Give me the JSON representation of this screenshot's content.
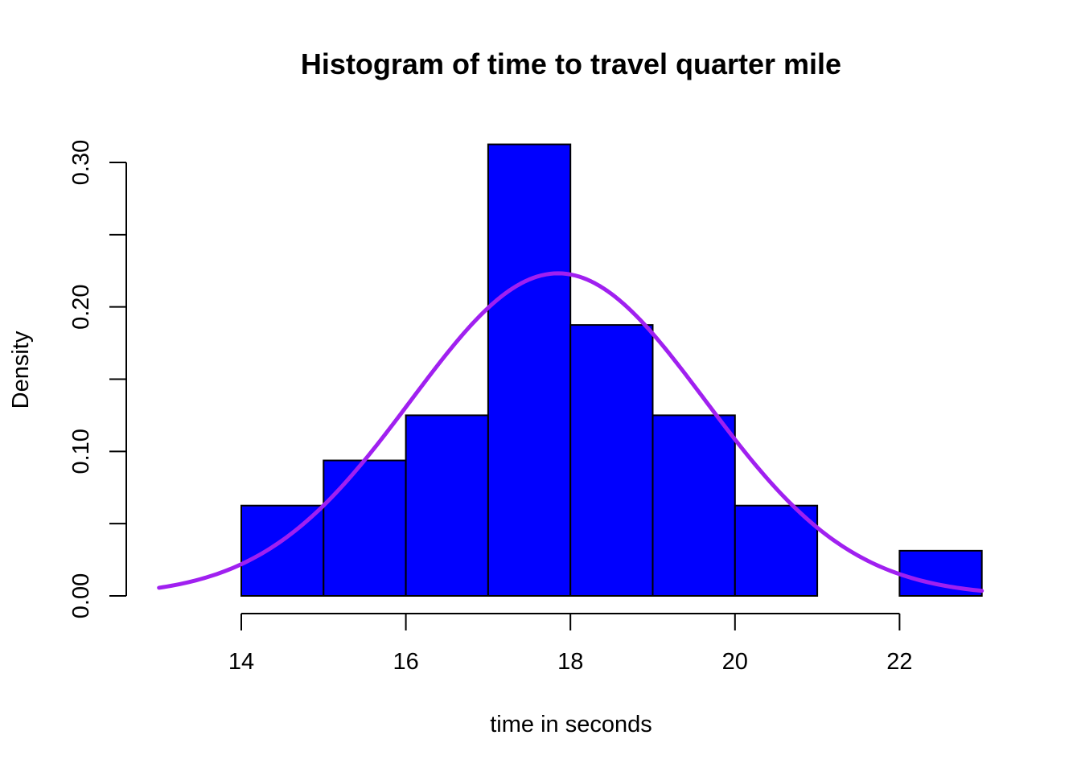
{
  "chart_data": {
    "type": "bar",
    "title": "Histogram of time to travel quarter mile",
    "xlabel": "time in seconds",
    "ylabel": "Density",
    "xlim": [
      13,
      23
    ],
    "ylim": [
      0,
      0.3
    ],
    "x_ticks": [
      14,
      16,
      18,
      20,
      22
    ],
    "y_ticks": [
      0,
      0.05,
      0.1,
      0.15,
      0.2,
      0.25,
      0.3
    ],
    "y_tick_labels": [
      "0.00",
      "",
      "0.10",
      "",
      "0.20",
      "",
      "0.30"
    ],
    "bins": [
      {
        "from": 14,
        "to": 15,
        "density": 0.0625
      },
      {
        "from": 15,
        "to": 16,
        "density": 0.09375
      },
      {
        "from": 16,
        "to": 17,
        "density": 0.125
      },
      {
        "from": 17,
        "to": 18,
        "density": 0.3125
      },
      {
        "from": 18,
        "to": 19,
        "density": 0.1875
      },
      {
        "from": 19,
        "to": 20,
        "density": 0.125
      },
      {
        "from": 20,
        "to": 21,
        "density": 0.0625
      },
      {
        "from": 21,
        "to": 22,
        "density": 0
      },
      {
        "from": 22,
        "to": 23,
        "density": 0.03125
      }
    ],
    "normal_curve": {
      "mean": 17.85,
      "sd": 1.787,
      "from": 13,
      "to": 23
    },
    "colors": {
      "bar_fill": "#0000ff",
      "bar_stroke": "#000000",
      "curve": "#a020f0"
    },
    "grid": false,
    "legend": "none"
  }
}
